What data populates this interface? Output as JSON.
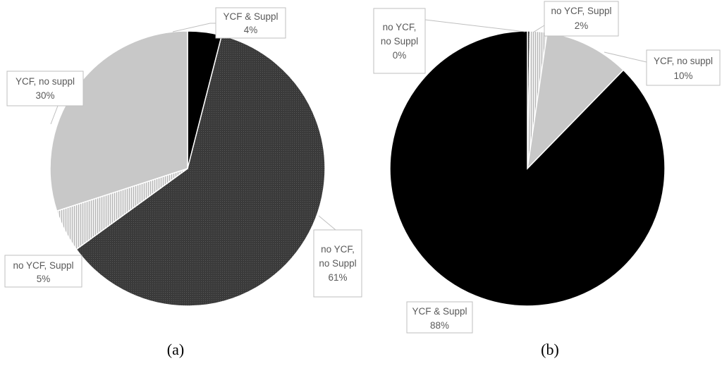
{
  "colors": {
    "no_ycf_no_suppl": "#3a3a3a",
    "no_ycf_suppl": "#e9e9e9",
    "ycf_no_suppl": "#c8c8c8",
    "ycf_and_suppl": "#000000"
  },
  "chart_data": [
    {
      "type": "pie",
      "panel_label": "(a)",
      "slices": [
        {
          "label_line1": "YCF & Suppl",
          "label_line2": "",
          "percent_label": "4%",
          "value": 4,
          "color": "#000000"
        },
        {
          "label_line1": "no YCF,",
          "label_line2": "no Suppl",
          "percent_label": "61%",
          "value": 61,
          "color": "#3a3a3a"
        },
        {
          "label_line1": "no YCF, Suppl",
          "label_line2": "",
          "percent_label": "5%",
          "value": 5,
          "color": "#e9e9e9"
        },
        {
          "label_line1": "YCF, no suppl",
          "label_line2": "",
          "percent_label": "30%",
          "value": 30,
          "color": "#c8c8c8"
        }
      ]
    },
    {
      "type": "pie",
      "panel_label": "(b)",
      "slices": [
        {
          "label_line1": "no YCF,",
          "label_line2": "no Suppl",
          "percent_label": "0%",
          "value": 0.3,
          "color": "#3a3a3a"
        },
        {
          "label_line1": "no YCF, Suppl",
          "label_line2": "",
          "percent_label": "2%",
          "value": 2,
          "color": "#e9e9e9"
        },
        {
          "label_line1": "YCF, no suppl",
          "label_line2": "",
          "percent_label": "10%",
          "value": 10,
          "color": "#c8c8c8"
        },
        {
          "label_line1": "YCF & Suppl",
          "label_line2": "",
          "percent_label": "88%",
          "value": 87.7,
          "color": "#000000"
        }
      ]
    }
  ]
}
